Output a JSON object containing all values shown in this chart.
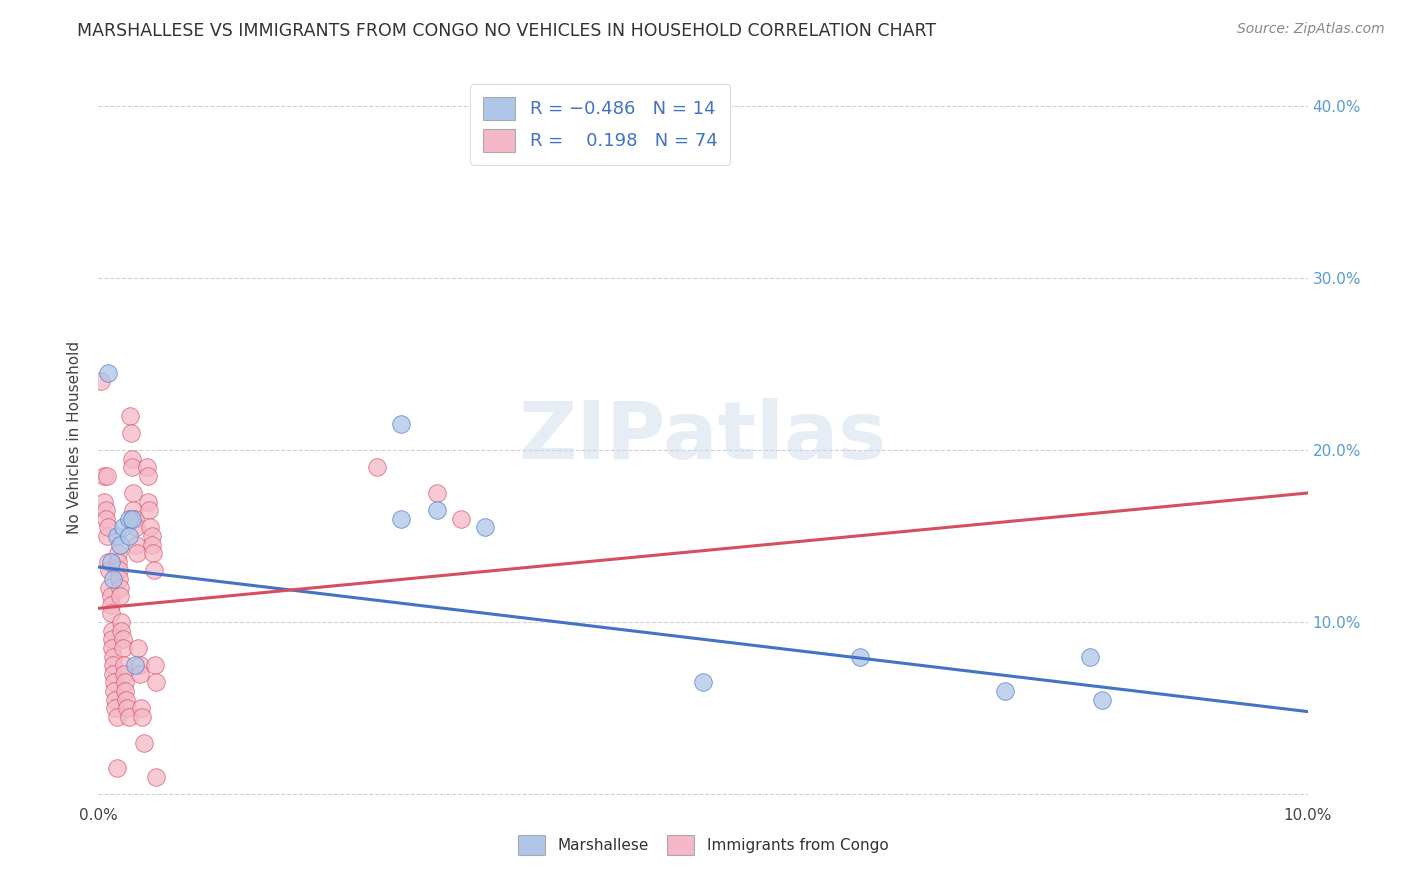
{
  "title": "MARSHALLESE VS IMMIGRANTS FROM CONGO NO VEHICLES IN HOUSEHOLD CORRELATION CHART",
  "source": "Source: ZipAtlas.com",
  "ylabel": "No Vehicles in Household",
  "watermark": "ZIPatlas",
  "blue_color": "#aec6e8",
  "blue_line_color": "#4472c4",
  "pink_color": "#f4b8c8",
  "pink_line_color": "#d45060",
  "xlim": [
    0.0,
    0.1
  ],
  "ylim": [
    -0.005,
    0.42
  ],
  "x_ticks": [
    0.0,
    0.02,
    0.04,
    0.06,
    0.08,
    0.1
  ],
  "x_tick_labels": [
    "0.0%",
    "",
    "",
    "",
    "",
    "10.0%"
  ],
  "y_ticks": [
    0.0,
    0.1,
    0.2,
    0.3,
    0.4
  ],
  "y_tick_labels_right": [
    "",
    "10.0%",
    "20.0%",
    "30.0%",
    "40.0%"
  ],
  "blue_scatter": [
    [
      0.0008,
      0.245
    ],
    [
      0.001,
      0.135
    ],
    [
      0.0012,
      0.125
    ],
    [
      0.0015,
      0.15
    ],
    [
      0.0018,
      0.145
    ],
    [
      0.002,
      0.155
    ],
    [
      0.0025,
      0.16
    ],
    [
      0.0025,
      0.15
    ],
    [
      0.0028,
      0.16
    ],
    [
      0.003,
      0.075
    ],
    [
      0.025,
      0.215
    ],
    [
      0.025,
      0.16
    ],
    [
      0.028,
      0.165
    ],
    [
      0.032,
      0.155
    ],
    [
      0.05,
      0.065
    ],
    [
      0.063,
      0.08
    ],
    [
      0.075,
      0.06
    ],
    [
      0.082,
      0.08
    ],
    [
      0.083,
      0.055
    ]
  ],
  "pink_scatter": [
    [
      0.0002,
      0.24
    ],
    [
      0.0005,
      0.185
    ],
    [
      0.0005,
      0.17
    ],
    [
      0.0006,
      0.165
    ],
    [
      0.0006,
      0.16
    ],
    [
      0.0007,
      0.185
    ],
    [
      0.0007,
      0.15
    ],
    [
      0.0008,
      0.155
    ],
    [
      0.0008,
      0.135
    ],
    [
      0.0009,
      0.13
    ],
    [
      0.0009,
      0.12
    ],
    [
      0.001,
      0.115
    ],
    [
      0.001,
      0.11
    ],
    [
      0.001,
      0.105
    ],
    [
      0.0011,
      0.095
    ],
    [
      0.0011,
      0.09
    ],
    [
      0.0011,
      0.085
    ],
    [
      0.0012,
      0.08
    ],
    [
      0.0012,
      0.075
    ],
    [
      0.0012,
      0.07
    ],
    [
      0.0013,
      0.065
    ],
    [
      0.0013,
      0.06
    ],
    [
      0.0014,
      0.055
    ],
    [
      0.0014,
      0.05
    ],
    [
      0.0015,
      0.045
    ],
    [
      0.0015,
      0.015
    ],
    [
      0.0016,
      0.14
    ],
    [
      0.0016,
      0.135
    ],
    [
      0.0017,
      0.13
    ],
    [
      0.0017,
      0.125
    ],
    [
      0.0018,
      0.12
    ],
    [
      0.0018,
      0.115
    ],
    [
      0.0019,
      0.1
    ],
    [
      0.0019,
      0.095
    ],
    [
      0.002,
      0.09
    ],
    [
      0.002,
      0.085
    ],
    [
      0.0021,
      0.075
    ],
    [
      0.0021,
      0.07
    ],
    [
      0.0022,
      0.065
    ],
    [
      0.0022,
      0.06
    ],
    [
      0.0023,
      0.055
    ],
    [
      0.0024,
      0.05
    ],
    [
      0.0025,
      0.045
    ],
    [
      0.0026,
      0.22
    ],
    [
      0.0027,
      0.21
    ],
    [
      0.0028,
      0.195
    ],
    [
      0.0028,
      0.19
    ],
    [
      0.0029,
      0.175
    ],
    [
      0.0029,
      0.165
    ],
    [
      0.003,
      0.16
    ],
    [
      0.0031,
      0.155
    ],
    [
      0.0031,
      0.145
    ],
    [
      0.0032,
      0.14
    ],
    [
      0.0033,
      0.085
    ],
    [
      0.0034,
      0.075
    ],
    [
      0.0034,
      0.07
    ],
    [
      0.0035,
      0.05
    ],
    [
      0.0036,
      0.045
    ],
    [
      0.0038,
      0.03
    ],
    [
      0.004,
      0.19
    ],
    [
      0.0041,
      0.185
    ],
    [
      0.0041,
      0.17
    ],
    [
      0.0042,
      0.165
    ],
    [
      0.0043,
      0.155
    ],
    [
      0.0044,
      0.15
    ],
    [
      0.0044,
      0.145
    ],
    [
      0.0045,
      0.14
    ],
    [
      0.0046,
      0.13
    ],
    [
      0.0047,
      0.075
    ],
    [
      0.0048,
      0.065
    ],
    [
      0.0048,
      0.01
    ],
    [
      0.023,
      0.19
    ],
    [
      0.028,
      0.175
    ],
    [
      0.03,
      0.16
    ]
  ],
  "blue_trendline_solid": [
    [
      0.0,
      0.132
    ],
    [
      0.1,
      0.048
    ]
  ],
  "pink_trendline_solid": [
    [
      0.0,
      0.108
    ],
    [
      0.1,
      0.175
    ]
  ],
  "blue_trendline_dashed": [
    [
      0.0,
      0.132
    ],
    [
      0.1,
      0.048
    ]
  ],
  "pink_trendline_dashed": [
    [
      0.0,
      0.108
    ],
    [
      0.1,
      0.175
    ]
  ]
}
